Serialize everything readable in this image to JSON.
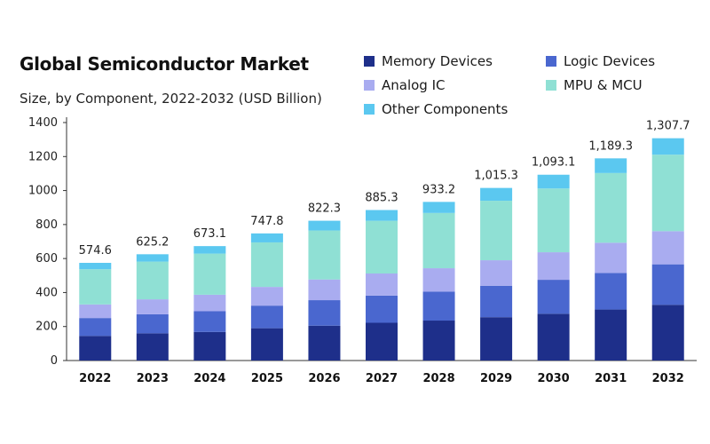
{
  "chart_data": {
    "type": "bar",
    "stacked": true,
    "title": "Global Semiconductor Market",
    "subtitle": "Size, by Component, 2022-2032 (USD Billion)",
    "categories": [
      "2022",
      "2023",
      "2024",
      "2025",
      "2026",
      "2027",
      "2028",
      "2029",
      "2030",
      "2031",
      "2032"
    ],
    "totals": [
      "574.6",
      "625.2",
      "673.1",
      "747.8",
      "822.3",
      "885.3",
      "933.2",
      "1,015.3",
      "1,093.1",
      "1,189.3",
      "1,307.7"
    ],
    "ylim": [
      0,
      1400
    ],
    "yticks": [
      0,
      200,
      400,
      600,
      800,
      1000,
      1200,
      1400
    ],
    "grid": false,
    "legend_position": "top-right",
    "series": [
      {
        "name": "Memory Devices",
        "color": "#1e2f8a",
        "values": [
          145,
          160,
          168,
          190,
          205,
          222,
          235,
          255,
          275,
          300,
          328
        ]
      },
      {
        "name": "Logic Devices",
        "color": "#4a67cf",
        "values": [
          105,
          112,
          122,
          133,
          150,
          160,
          170,
          185,
          200,
          215,
          238
        ]
      },
      {
        "name": "Analog IC",
        "color": "#a9acf0",
        "values": [
          80,
          88,
          97,
          110,
          122,
          130,
          138,
          150,
          162,
          178,
          195
        ]
      },
      {
        "name": "MPU & MCU",
        "color": "#8fe0d4",
        "values": [
          207,
          222,
          242,
          262,
          288,
          310,
          325,
          350,
          375,
          410,
          450
        ]
      },
      {
        "name": "Other Components",
        "color": "#5bc8f0",
        "values": [
          37.6,
          43.2,
          44.1,
          52.8,
          57.3,
          63.3,
          65.2,
          75.3,
          81.1,
          86.3,
          96.7
        ]
      }
    ]
  }
}
